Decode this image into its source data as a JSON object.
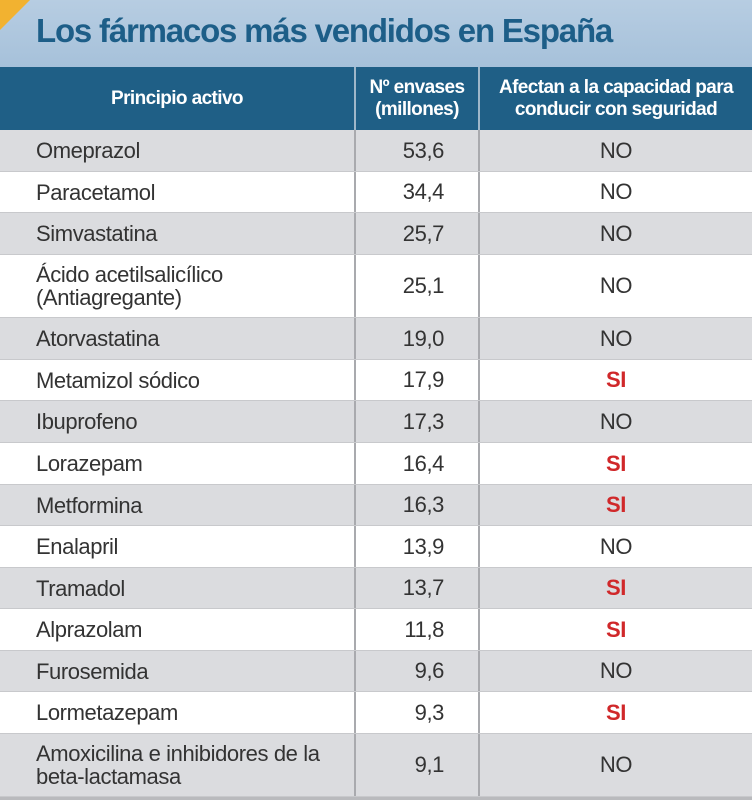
{
  "title": "Los fármacos más vendidos en España",
  "colors": {
    "header_bg": "#1f5f86",
    "title": "#1d5e88",
    "si": "#d0282a",
    "accent_corner": "#f2b230"
  },
  "chart_data": {
    "type": "table",
    "title": "Los fármacos más vendidos en España",
    "columns": [
      "Principio activo",
      "Nº envases (millones)",
      "Afectan a la capacidad para conducir con seguridad"
    ],
    "rows": [
      {
        "name": "Omeprazol",
        "value": "53,6",
        "affects": "NO"
      },
      {
        "name": "Paracetamol",
        "value": "34,4",
        "affects": "NO"
      },
      {
        "name": "Simvastatina",
        "value": "25,7",
        "affects": "NO"
      },
      {
        "name": "Ácido acetilsalicílico (Antiagregante)",
        "value": "25,1",
        "affects": "NO"
      },
      {
        "name": "Atorvastatina",
        "value": "19,0",
        "affects": "NO"
      },
      {
        "name": "Metamizol sódico",
        "value": "17,9",
        "affects": "SI"
      },
      {
        "name": "Ibuprofeno",
        "value": "17,3",
        "affects": "NO"
      },
      {
        "name": "Lorazepam",
        "value": "16,4",
        "affects": "SI"
      },
      {
        "name": "Metformina",
        "value": "16,3",
        "affects": "SI"
      },
      {
        "name": "Enalapril",
        "value": "13,9",
        "affects": "NO"
      },
      {
        "name": "Tramadol",
        "value": "13,7",
        "affects": "SI"
      },
      {
        "name": "Alprazolam",
        "value": "11,8",
        "affects": "SI"
      },
      {
        "name": "Furosemida",
        "value": "9,6",
        "affects": "NO"
      },
      {
        "name": "Lormetazepam",
        "value": "9,3",
        "affects": "SI"
      },
      {
        "name": "Amoxicilina e inhibidores de la beta-lactamasa",
        "value": "9,1",
        "affects": "NO"
      }
    ]
  }
}
